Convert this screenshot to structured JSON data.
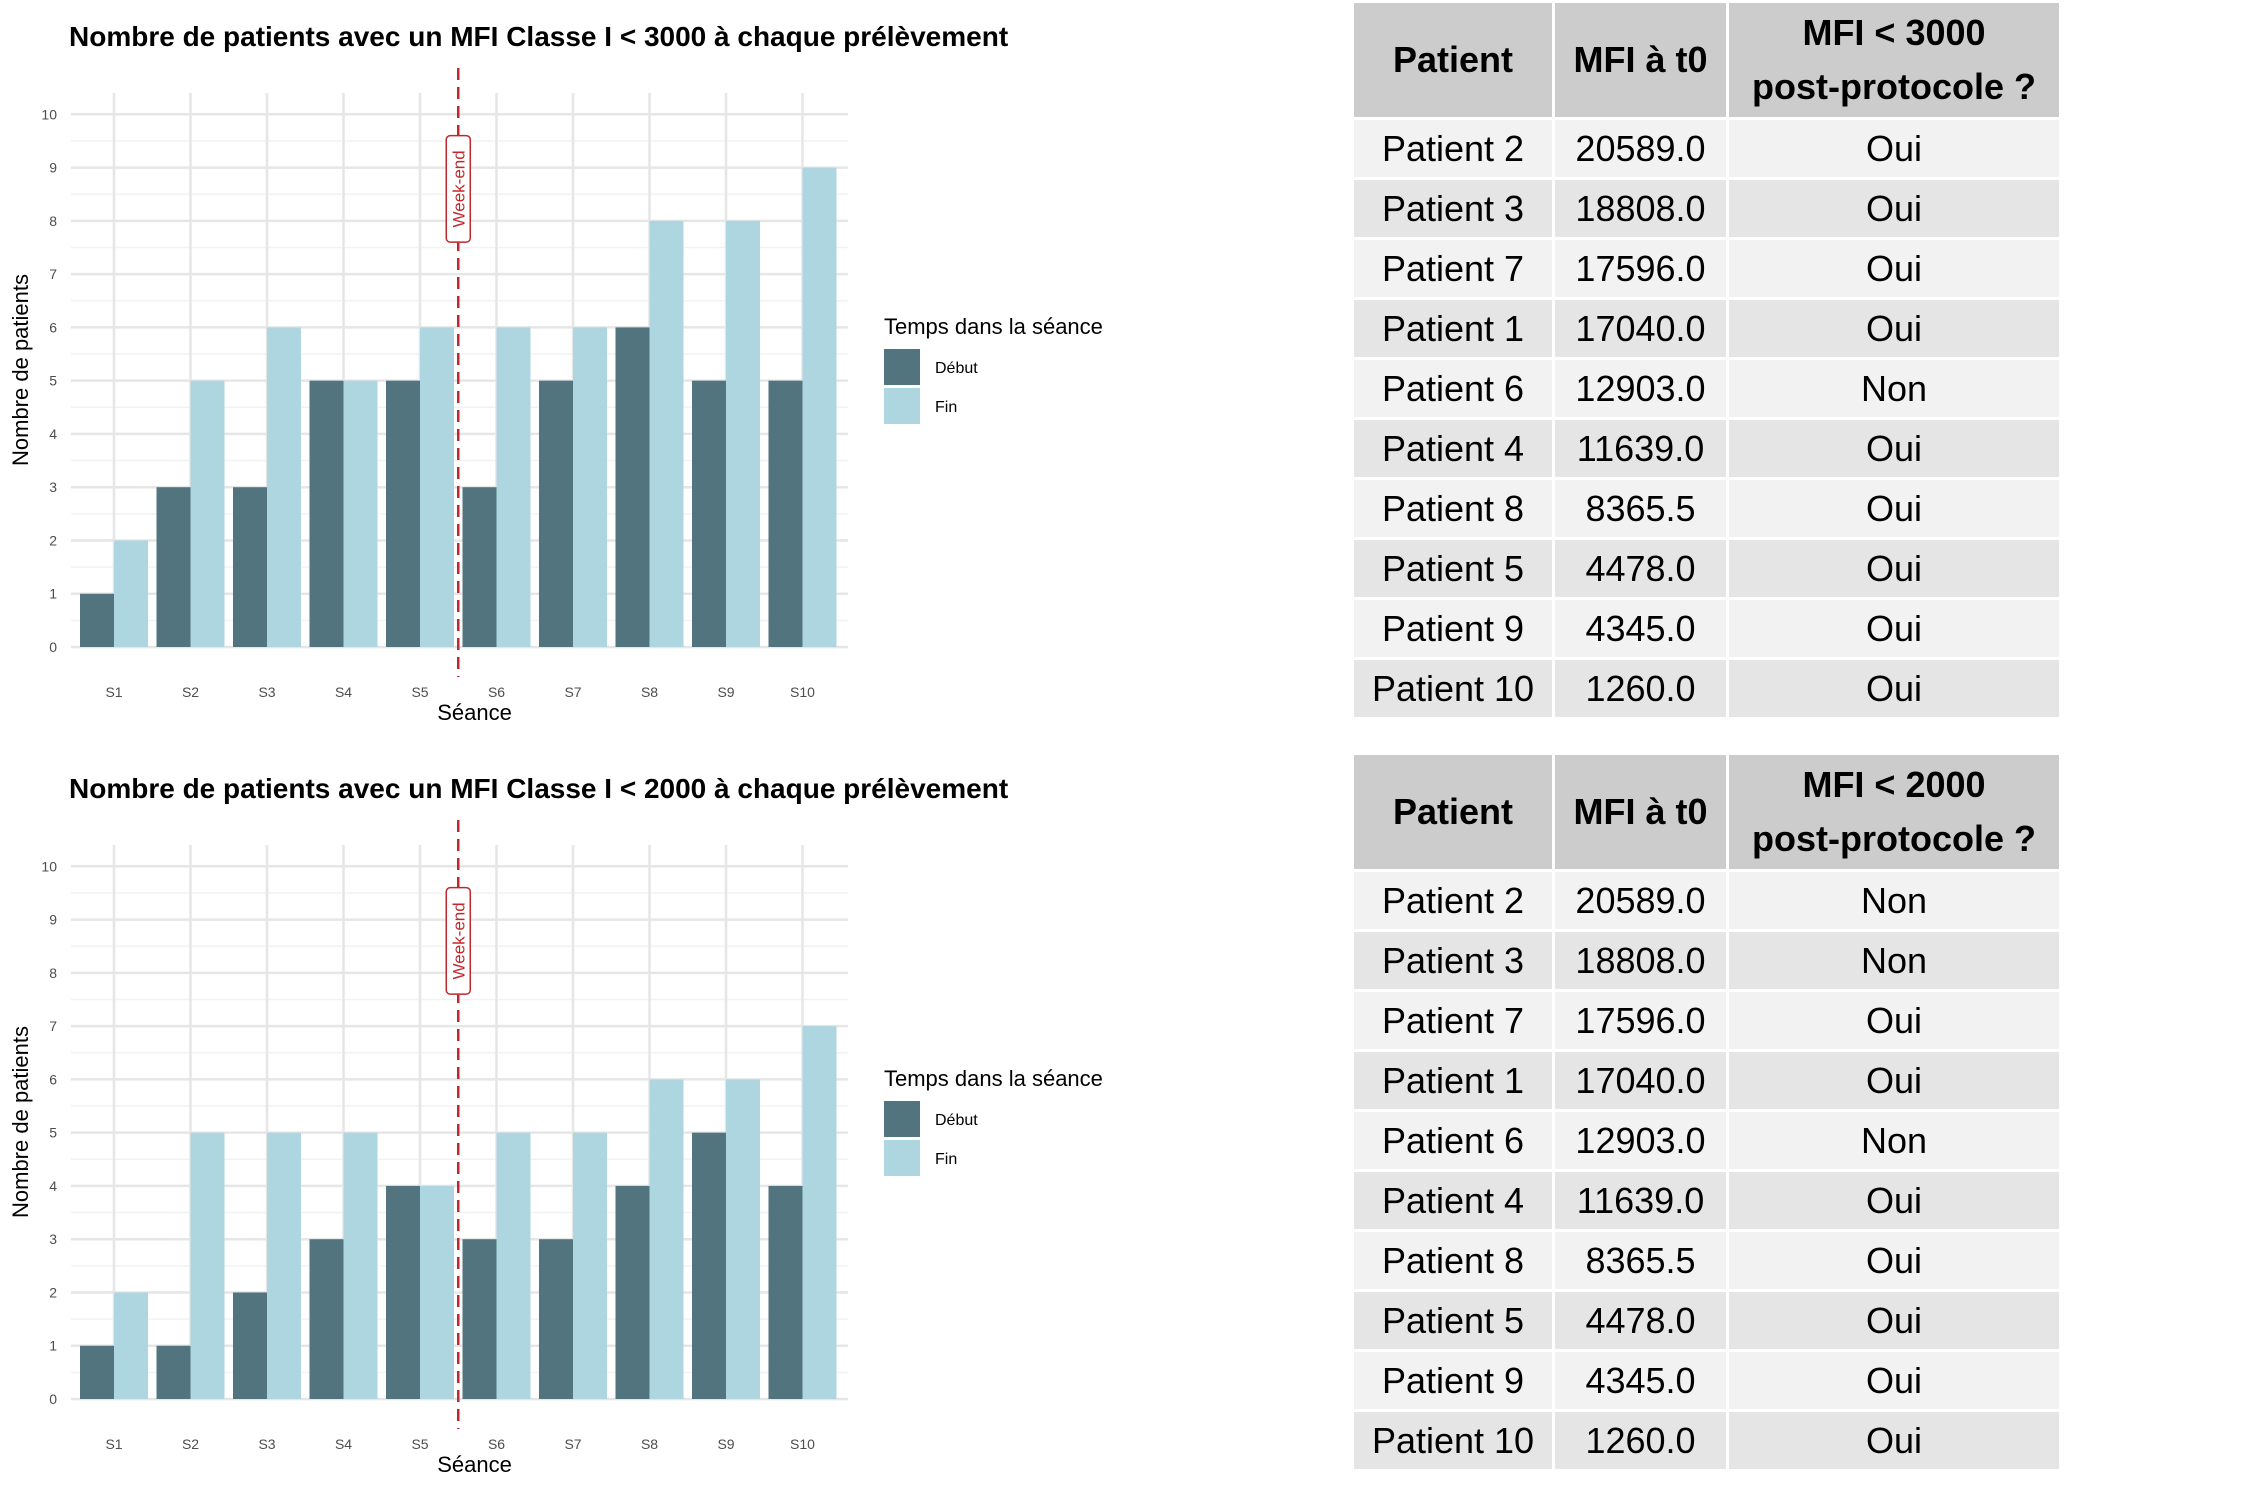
{
  "chart_data": [
    {
      "type": "bar",
      "title": "Nombre de patients avec un MFI Classe I < 3000 à chaque prélèvement",
      "xlabel": "Séance",
      "ylabel": "Nombre de patients",
      "categories": [
        "S1",
        "S2",
        "S3",
        "S4",
        "S5",
        "S6",
        "S7",
        "S8",
        "S9",
        "S10"
      ],
      "series": [
        {
          "name": "Début",
          "color": "#51747e",
          "values": [
            1,
            3,
            3,
            5,
            5,
            3,
            5,
            6,
            5,
            5
          ]
        },
        {
          "name": "Fin",
          "color": "#add6e0",
          "values": [
            2,
            5,
            6,
            5,
            6,
            6,
            6,
            8,
            8,
            9
          ]
        }
      ],
      "ylim": [
        0,
        10
      ],
      "yticks": [
        0,
        1,
        2,
        3,
        4,
        5,
        6,
        7,
        8,
        9,
        10
      ],
      "legend_title": "Temps dans la séance",
      "legend_position": "right",
      "grid": true,
      "annotation": {
        "label": "Week-end",
        "between": [
          "S5",
          "S6"
        ],
        "color": "#c0282e"
      }
    },
    {
      "type": "bar",
      "title": "Nombre de patients avec un MFI Classe I < 2000 à chaque prélèvement",
      "xlabel": "Séance",
      "ylabel": "Nombre de patients",
      "categories": [
        "S1",
        "S2",
        "S3",
        "S4",
        "S5",
        "S6",
        "S7",
        "S8",
        "S9",
        "S10"
      ],
      "series": [
        {
          "name": "Début",
          "color": "#51747e",
          "values": [
            1,
            1,
            2,
            3,
            4,
            3,
            3,
            4,
            5,
            4
          ]
        },
        {
          "name": "Fin",
          "color": "#add6e0",
          "values": [
            2,
            5,
            5,
            5,
            4,
            5,
            5,
            6,
            6,
            7
          ]
        }
      ],
      "ylim": [
        0,
        10
      ],
      "yticks": [
        0,
        1,
        2,
        3,
        4,
        5,
        6,
        7,
        8,
        9,
        10
      ],
      "legend_title": "Temps dans la séance",
      "legend_position": "right",
      "grid": true,
      "annotation": {
        "label": "Week-end",
        "between": [
          "S5",
          "S6"
        ],
        "color": "#c0282e"
      }
    }
  ],
  "tables": [
    {
      "headers": [
        "Patient",
        "MFI à t0",
        "MFI < 3000 post-protocole ?"
      ],
      "header_line1": "MFI < 3000",
      "header_line2": "post-protocole ?",
      "rows": [
        {
          "patient": "Patient 2",
          "mfi": "20589.0",
          "result": "Oui"
        },
        {
          "patient": "Patient 3",
          "mfi": "18808.0",
          "result": "Oui"
        },
        {
          "patient": "Patient 7",
          "mfi": "17596.0",
          "result": "Oui"
        },
        {
          "patient": "Patient 1",
          "mfi": "17040.0",
          "result": "Oui"
        },
        {
          "patient": "Patient 6",
          "mfi": "12903.0",
          "result": "Non"
        },
        {
          "patient": "Patient 4",
          "mfi": "11639.0",
          "result": "Oui"
        },
        {
          "patient": "Patient 8",
          "mfi": "8365.5",
          "result": "Oui"
        },
        {
          "patient": "Patient 5",
          "mfi": "4478.0",
          "result": "Oui"
        },
        {
          "patient": "Patient 9",
          "mfi": "4345.0",
          "result": "Oui"
        },
        {
          "patient": "Patient 10",
          "mfi": "1260.0",
          "result": "Oui"
        }
      ]
    },
    {
      "headers": [
        "Patient",
        "MFI à t0",
        "MFI < 2000 post-protocole ?"
      ],
      "header_line1": "MFI < 2000",
      "header_line2": "post-protocole ?",
      "rows": [
        {
          "patient": "Patient 2",
          "mfi": "20589.0",
          "result": "Non"
        },
        {
          "patient": "Patient 3",
          "mfi": "18808.0",
          "result": "Non"
        },
        {
          "patient": "Patient 7",
          "mfi": "17596.0",
          "result": "Oui"
        },
        {
          "patient": "Patient 1",
          "mfi": "17040.0",
          "result": "Oui"
        },
        {
          "patient": "Patient 6",
          "mfi": "12903.0",
          "result": "Non"
        },
        {
          "patient": "Patient 4",
          "mfi": "11639.0",
          "result": "Oui"
        },
        {
          "patient": "Patient 8",
          "mfi": "8365.5",
          "result": "Oui"
        },
        {
          "patient": "Patient 5",
          "mfi": "4478.0",
          "result": "Oui"
        },
        {
          "patient": "Patient 9",
          "mfi": "4345.0",
          "result": "Oui"
        },
        {
          "patient": "Patient 10",
          "mfi": "1260.0",
          "result": "Oui"
        }
      ]
    }
  ]
}
